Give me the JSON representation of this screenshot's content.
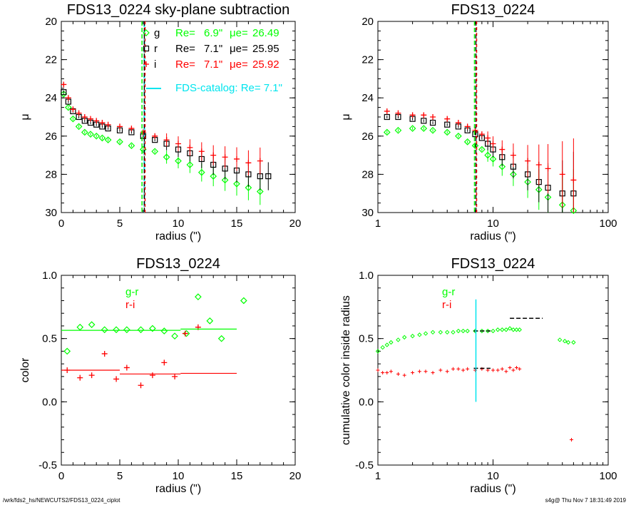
{
  "colors": {
    "g": "#00ff00",
    "r": "#000000",
    "i": "#ff0000",
    "catalog": "#00e5ee"
  },
  "footer": {
    "left": "/wrk/fds2_hs/NEWCUTS2/FDS13_0224_ciplot",
    "right": "s4g@  Thu Nov  7 18:31:49 2019"
  },
  "chart_data": [
    {
      "type": "scatter",
      "title": "FDS13_0224 sky-plane subtraction",
      "xlabel": "radius (\")",
      "ylabel": "μ",
      "xlim": [
        0,
        20
      ],
      "ylim": [
        30,
        20
      ],
      "xticks": [
        "0",
        "5",
        "10",
        "15",
        "20"
      ],
      "yticks": [
        "20",
        "22",
        "24",
        "26",
        "28",
        "30"
      ],
      "legend": [
        {
          "band": "g",
          "Re_label": "Re=",
          "Re": "6.9\"",
          "mue_label": "μe=",
          "mue": "26.49"
        },
        {
          "band": "r",
          "Re_label": "Re=",
          "Re": "7.1\"",
          "mue_label": "μe=",
          "mue": "25.95"
        },
        {
          "band": "i",
          "Re_label": "Re=",
          "Re": "7.1\"",
          "mue_label": "μe=",
          "mue": "25.92"
        }
      ],
      "catalog_label": "FDS-catalog: Re=  7.1\"",
      "vlines": {
        "g": 6.9,
        "r": 7.1,
        "i": 7.1,
        "catalog": 7.1
      },
      "series": [
        {
          "name": "g",
          "x": [
            0.2,
            0.6,
            1.0,
            1.5,
            2.0,
            2.5,
            3.0,
            3.5,
            4.0,
            5.0,
            6.0,
            7.0,
            8.0,
            9.0,
            10.0,
            11.0,
            12.0,
            13.0,
            14.0,
            15.0,
            16.0,
            17.0
          ],
          "y": [
            23.8,
            24.5,
            25.1,
            25.5,
            25.8,
            25.9,
            26.0,
            26.1,
            26.2,
            26.3,
            26.5,
            26.7,
            26.8,
            27.1,
            27.3,
            27.5,
            27.9,
            28.1,
            28.3,
            28.5,
            28.7,
            28.9
          ]
        },
        {
          "name": "r",
          "x": [
            0.2,
            0.6,
            1.0,
            1.5,
            2.0,
            2.5,
            3.0,
            3.5,
            4.0,
            5.0,
            6.0,
            7.0,
            8.0,
            9.0,
            10.0,
            11.0,
            12.0,
            13.0,
            14.0,
            15.0,
            16.0,
            17.0,
            17.7
          ],
          "y": [
            23.7,
            24.2,
            24.7,
            25.0,
            25.2,
            25.3,
            25.4,
            25.5,
            25.6,
            25.7,
            25.8,
            26.0,
            26.2,
            26.4,
            26.7,
            26.9,
            27.2,
            27.5,
            27.7,
            27.8,
            28.0,
            28.1,
            28.1
          ]
        },
        {
          "name": "i",
          "x": [
            0.2,
            0.6,
            1.0,
            1.5,
            2.0,
            2.5,
            3.0,
            3.5,
            4.0,
            5.0,
            6.0,
            7.0,
            8.0,
            9.0,
            10.0,
            11.0,
            12.0,
            13.0,
            14.0,
            15.0,
            16.0,
            17.0
          ],
          "y": [
            23.3,
            24.0,
            24.6,
            24.8,
            25.0,
            25.1,
            25.2,
            25.3,
            25.4,
            25.5,
            25.6,
            25.8,
            26.0,
            26.2,
            26.4,
            26.6,
            26.8,
            27.0,
            27.1,
            27.2,
            27.4,
            27.3
          ]
        }
      ]
    },
    {
      "type": "scatter",
      "title": "FDS13_0224",
      "xlabel": "radius (\")",
      "ylabel": "μ",
      "xscale": "log",
      "xlim": [
        1,
        100
      ],
      "ylim": [
        30,
        20
      ],
      "xticks": [
        "1",
        "10",
        "100"
      ],
      "yticks": [
        "20",
        "22",
        "24",
        "26",
        "28",
        "30"
      ],
      "vlines": {
        "g": 6.9,
        "r": 7.1,
        "i": 7.1
      },
      "series": [
        {
          "name": "g",
          "x": [
            1.2,
            1.5,
            2.0,
            2.5,
            3.0,
            4.0,
            5.0,
            6.0,
            7.0,
            8.0,
            9.0,
            10.0,
            12.0,
            15.0,
            20.0,
            25.0,
            30.0,
            40.0,
            50.0
          ],
          "y": [
            25.8,
            25.7,
            25.6,
            25.6,
            25.7,
            25.8,
            26.0,
            26.3,
            26.5,
            26.7,
            27.0,
            27.2,
            27.6,
            28.0,
            28.4,
            28.8,
            29.2,
            29.6,
            29.9
          ]
        },
        {
          "name": "r",
          "x": [
            1.2,
            1.5,
            2.0,
            2.5,
            3.0,
            4.0,
            5.0,
            6.0,
            7.0,
            8.0,
            9.0,
            10.0,
            12.0,
            15.0,
            20.0,
            25.0,
            30.0,
            40.0,
            50.0
          ],
          "y": [
            25.0,
            25.0,
            25.1,
            25.2,
            25.3,
            25.4,
            25.5,
            25.7,
            25.9,
            26.1,
            26.4,
            26.7,
            27.1,
            27.6,
            28.0,
            28.4,
            28.7,
            29.0,
            29.0
          ]
        },
        {
          "name": "i",
          "x": [
            1.2,
            1.5,
            2.0,
            2.5,
            3.0,
            4.0,
            5.0,
            6.0,
            7.0,
            8.0,
            9.0,
            10.0,
            12.0,
            15.0,
            20.0,
            25.0,
            30.0,
            40.0,
            50.0
          ],
          "y": [
            24.7,
            24.8,
            24.9,
            24.9,
            25.0,
            25.1,
            25.3,
            25.5,
            25.7,
            25.9,
            26.1,
            26.4,
            26.7,
            27.0,
            27.3,
            27.5,
            27.7,
            28.0,
            28.3
          ]
        }
      ]
    },
    {
      "type": "scatter",
      "title": "FDS13_0224",
      "xlabel": "radius (\")",
      "ylabel": "color",
      "xlim": [
        0,
        20
      ],
      "ylim": [
        -0.5,
        1.0
      ],
      "xticks": [
        "0",
        "5",
        "10",
        "15",
        "20"
      ],
      "yticks": [
        "-0.5",
        "0.0",
        "0.5",
        "1.0"
      ],
      "legend": [
        "g-r",
        "r-i"
      ],
      "series": [
        {
          "name": "g-r",
          "x": [
            0.5,
            1.6,
            2.6,
            3.7,
            4.7,
            5.6,
            6.8,
            7.8,
            8.8,
            9.7,
            10.7,
            11.7,
            12.7,
            13.7,
            15.6
          ],
          "y": [
            0.4,
            0.59,
            0.61,
            0.57,
            0.57,
            0.57,
            0.57,
            0.58,
            0.56,
            0.52,
            0.54,
            0.83,
            0.64,
            0.5,
            0.8
          ]
        },
        {
          "name": "r-i",
          "x": [
            0.5,
            1.6,
            2.6,
            3.7,
            4.7,
            5.6,
            6.8,
            7.8,
            8.8,
            9.7,
            10.6,
            11.7
          ],
          "y": [
            0.25,
            0.19,
            0.21,
            0.38,
            0.18,
            0.27,
            0.13,
            0.21,
            0.31,
            0.2,
            0.54,
            0.59
          ]
        }
      ],
      "fits": [
        {
          "name": "g-r",
          "segments": [
            [
              0,
              10.2,
              0.565
            ],
            [
              10.2,
              15,
              0.575
            ]
          ]
        },
        {
          "name": "r-i",
          "segments": [
            [
              0,
              5,
              0.25
            ],
            [
              5,
              10.2,
              0.22
            ],
            [
              10.2,
              15,
              0.225
            ]
          ]
        }
      ]
    },
    {
      "type": "scatter",
      "title": "FDS13_0224",
      "xlabel": "radius (\")",
      "ylabel": "cumulative color inside radius",
      "xscale": "log",
      "xlim": [
        1,
        100
      ],
      "ylim": [
        -0.5,
        1.0
      ],
      "xticks": [
        "1",
        "10",
        "100"
      ],
      "yticks": [
        "-0.5",
        "0.0",
        "0.5",
        "1.0"
      ],
      "legend": [
        "g-r",
        "r-i"
      ],
      "vline": 7.1,
      "series": [
        {
          "name": "g-r",
          "x": [
            1.0,
            1.1,
            1.2,
            1.3,
            1.5,
            1.7,
            2.0,
            2.3,
            2.6,
            3.0,
            3.5,
            4.0,
            4.5,
            5.0,
            5.5,
            6.0,
            7.0,
            8.0,
            9.0,
            10.0,
            11.0,
            12.0,
            13.0,
            14.0,
            15.0,
            16.0,
            17.0,
            38.0,
            42.0,
            45.0,
            50.0
          ],
          "y": [
            0.4,
            0.43,
            0.45,
            0.47,
            0.49,
            0.51,
            0.52,
            0.53,
            0.54,
            0.55,
            0.55,
            0.55,
            0.55,
            0.56,
            0.56,
            0.56,
            0.56,
            0.56,
            0.56,
            0.56,
            0.57,
            0.57,
            0.57,
            0.58,
            0.57,
            0.57,
            0.57,
            0.49,
            0.48,
            0.47,
            0.47
          ]
        },
        {
          "name": "r-i",
          "x": [
            1.0,
            1.1,
            1.2,
            1.3,
            1.5,
            1.7,
            2.0,
            2.3,
            2.6,
            3.0,
            3.5,
            4.0,
            4.5,
            5.0,
            5.5,
            6.0,
            7.0,
            8.0,
            9.0,
            10.0,
            11.0,
            12.0,
            13.0,
            14.0,
            15.0,
            16.0,
            17.0,
            48.0
          ],
          "y": [
            0.25,
            0.23,
            0.23,
            0.24,
            0.22,
            0.21,
            0.23,
            0.24,
            0.24,
            0.23,
            0.25,
            0.24,
            0.26,
            0.26,
            0.25,
            0.26,
            0.25,
            0.26,
            0.25,
            0.25,
            0.25,
            0.26,
            0.24,
            0.27,
            0.25,
            0.27,
            0.26,
            -0.3
          ]
        }
      ],
      "fits": [
        {
          "segments": [
            [
              6.8,
              9.5,
              0.56
            ],
            [
              6.8,
              9.5,
              0.265
            ],
            [
              14.0,
              27.0,
              0.66
            ]
          ]
        }
      ]
    }
  ]
}
